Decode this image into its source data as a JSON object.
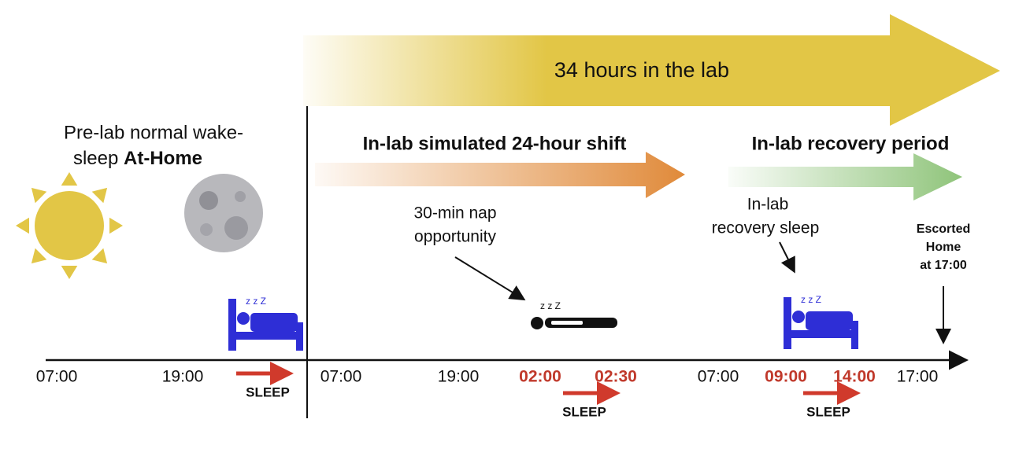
{
  "banner": "34 hours in the lab",
  "prelab": {
    "lines": [
      "Pre-lab normal wake-",
      "sleep"
    ],
    "bold": "At-Home"
  },
  "shift": "In-lab simulated 24-hour shift",
  "recovery": "In-lab recovery period",
  "nap": {
    "lines": [
      "30-min nap",
      "opportunity"
    ]
  },
  "recovery_sleep": {
    "lines": [
      "In-lab",
      "recovery sleep"
    ]
  },
  "escorted": {
    "lines": [
      "Escorted",
      "Home",
      "at 17:00"
    ]
  },
  "times": [
    "07:00",
    "19:00",
    "07:00",
    "19:00",
    "02:00",
    "02:30",
    "07:00",
    "09:00",
    "14:00",
    "17:00"
  ],
  "sleep_labels": [
    "SLEEP",
    "SLEEP",
    "SLEEP"
  ]
}
